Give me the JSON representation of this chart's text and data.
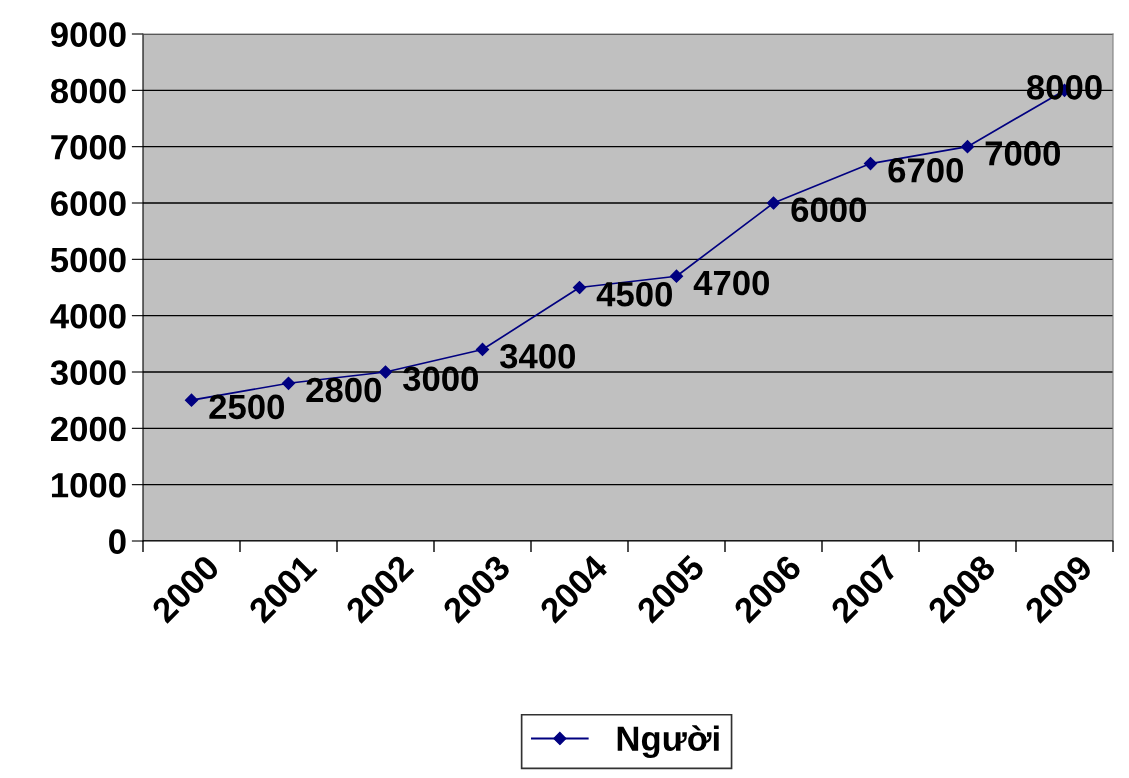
{
  "chart_data": {
    "type": "line",
    "categories": [
      "2000",
      "2001",
      "2002",
      "2003",
      "2004",
      "2005",
      "2006",
      "2007",
      "2008",
      "2009"
    ],
    "series": [
      {
        "name": "Người",
        "color": "#000080",
        "values": [
          2500,
          2800,
          3000,
          3400,
          4500,
          4700,
          6000,
          6700,
          7000,
          8000
        ]
      }
    ],
    "ylim": [
      0,
      9000
    ],
    "yticks": [
      0,
      1000,
      2000,
      3000,
      4000,
      5000,
      6000,
      7000,
      8000,
      9000
    ],
    "grid": "y",
    "legend": "bottom",
    "marker": "diamond",
    "line_style": "solid",
    "data_labels": true
  }
}
